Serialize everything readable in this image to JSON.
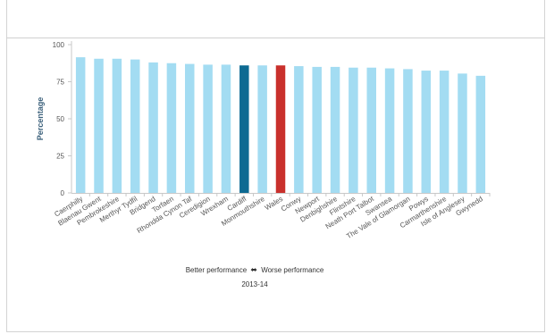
{
  "chart_data": {
    "type": "bar",
    "ylabel": "Percentage",
    "ylim": [
      0,
      100
    ],
    "yticks": [
      0,
      25,
      50,
      75,
      100
    ],
    "categories": [
      "Caerphilly",
      "Blaenau Gwent",
      "Pembrokeshire",
      "Merthyr Tydfil",
      "Bridgend",
      "Torfaen",
      "Rhondda Cynon Taf",
      "Ceredigion",
      "Wrexham",
      "Cardiff",
      "Monmouthshire",
      "Wales",
      "Conwy",
      "Newport",
      "Denbighshire",
      "Flintshire",
      "Neath Port Talbot",
      "Swansea",
      "The Vale of Glamorgan",
      "Powys",
      "Carmarthenshire",
      "Isle of Anglesey",
      "Gwynedd"
    ],
    "values": [
      91.5,
      90.5,
      90.5,
      90,
      88,
      87.5,
      87,
      86.5,
      86.5,
      86,
      86,
      86,
      85.5,
      85,
      85,
      84.5,
      84.5,
      84,
      83.5,
      82.5,
      82.5,
      80.5,
      79
    ],
    "highlight": {
      "Cardiff": "#0d6a92",
      "Wales": "#c9302c"
    },
    "default_color": "#a3dcf2",
    "grid": false
  },
  "legend": {
    "better": "Better performance",
    "arrow": "⬌",
    "worse": "Worse performance",
    "period": "2013-14"
  }
}
